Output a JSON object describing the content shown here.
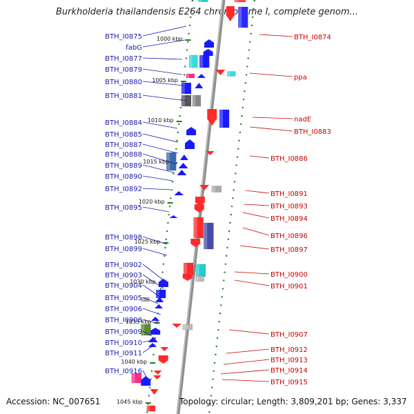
{
  "title": "Burkholderia thailandensis E264 chromosome I, complete genom...",
  "footer": {
    "accession": "Accession: NC_007651",
    "info": "Topology: circular; Length: 3,809,201 bp; Genes: 3,337"
  },
  "colors": {
    "backbone": "#909090",
    "forward_label": "#1a1aaa",
    "reverse_label": "#cc0000",
    "ruler": "#1f7a1f"
  },
  "scale_marks": [
    "1000 kbp",
    "1005 kbp",
    "1010 kbp",
    "1015 kbp",
    "1020 kbp",
    "1025 kbp",
    "1030 kbp",
    "1035 kbp",
    "1040 kbp",
    "1045 kbp"
  ],
  "left_labels": [
    "BTH_I0875",
    "fabG",
    "BTH_I0877",
    "BTH_I0879",
    "BTH_I0880",
    "BTH_I0881",
    "BTH_I0884",
    "BTH_I0885",
    "BTH_I0887",
    "BTH_I0888",
    "BTH_I0889",
    "BTH_I0890",
    "BTH_I0892",
    "BTH_I0895",
    "BTH_I0898",
    "BTH_I0899",
    "BTH_I0902",
    "BTH_I0903",
    "BTH_I0904",
    "BTH_I0905",
    "BTH_I0906",
    "BTH_I0908",
    "BTH_I0909",
    "BTH_I0910",
    "BTH_I0911",
    "BTH_I0916"
  ],
  "right_labels": [
    "BTH_I0874",
    "ppa",
    "nadE",
    "BTH_I0883",
    "BTH_I0886",
    "BTH_I0891",
    "BTH_I0893",
    "BTH_I0894",
    "BTH_I0896",
    "BTH_I0897",
    "BTH_I0900",
    "BTH_I0901",
    "BTH_I0907",
    "BTH_I0912",
    "BTH_I0913",
    "BTH_I0914",
    "BTH_I0915"
  ]
}
